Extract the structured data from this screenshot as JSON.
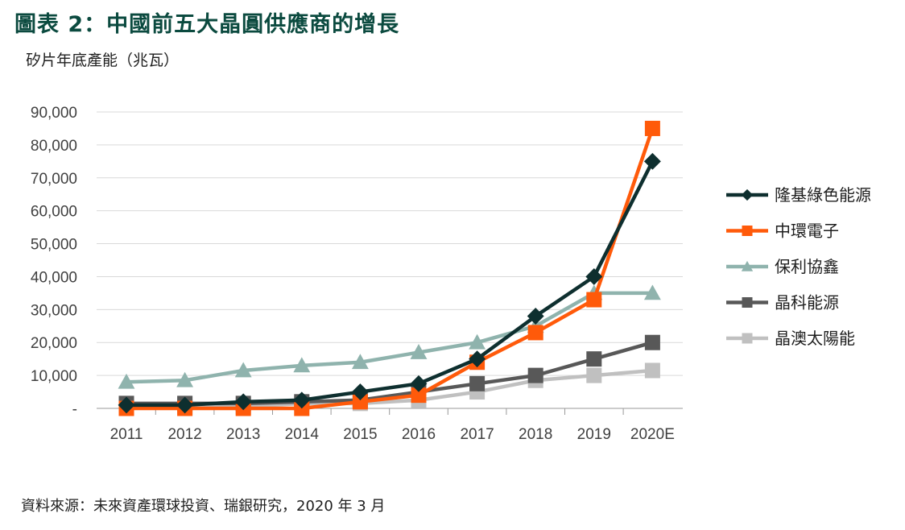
{
  "figure": {
    "title": "圖表 2：中國前五大晶圓供應商的增長",
    "y_unit_label": "矽片年底產能（兆瓦）",
    "source": "資料來源：未來資產環球投資、瑞銀研究，2020 年 3 月"
  },
  "chart_data": {
    "type": "line",
    "title": "圖表 2：中國前五大晶圓供應商的增長",
    "ylabel": "矽片年底產能（兆瓦）",
    "xlabel": "",
    "categories": [
      "2011",
      "2012",
      "2013",
      "2014",
      "2015",
      "2016",
      "2017",
      "2018",
      "2019",
      "2020E"
    ],
    "ylim": [
      0,
      90000
    ],
    "y_ticks": [
      0,
      10000,
      20000,
      30000,
      40000,
      50000,
      60000,
      70000,
      80000,
      90000
    ],
    "y_tick_labels": [
      "-",
      "10,000",
      "20,000",
      "30,000",
      "40,000",
      "50,000",
      "60,000",
      "70,000",
      "80,000",
      "90,000"
    ],
    "grid": true,
    "legend_position": "right",
    "series": [
      {
        "name": "隆基綠色能源",
        "color": "#0e2f2f",
        "marker": "diamond",
        "values": [
          1000,
          1000,
          2000,
          2500,
          5000,
          7500,
          15000,
          28000,
          40000,
          75000
        ]
      },
      {
        "name": "中環電子",
        "color": "#ff5a0a",
        "marker": "square",
        "values": [
          0,
          0,
          0,
          0,
          2000,
          4000,
          14000,
          23000,
          33000,
          85000
        ]
      },
      {
        "name": "保利協鑫",
        "color": "#8fb3ad",
        "marker": "triangle",
        "values": [
          8000,
          8500,
          11500,
          13000,
          14000,
          17000,
          20000,
          25000,
          35000,
          35000
        ]
      },
      {
        "name": "晶科能源",
        "color": "#585858",
        "marker": "square",
        "values": [
          1500,
          1500,
          1500,
          2000,
          2500,
          5000,
          7500,
          10000,
          15000,
          20000
        ]
      },
      {
        "name": "晶澳太陽能",
        "color": "#c0c0c0",
        "marker": "square",
        "values": [
          500,
          500,
          500,
          1500,
          1500,
          2500,
          5000,
          8500,
          10000,
          11500
        ]
      }
    ]
  }
}
